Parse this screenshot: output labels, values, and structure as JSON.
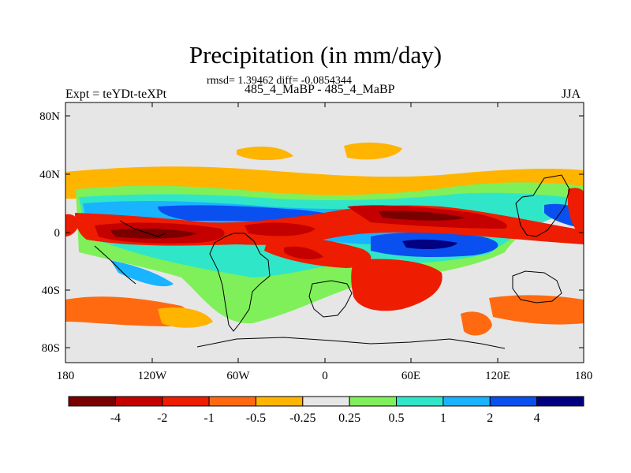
{
  "title": "Precipitation (in mm/day)",
  "stats_line": "rmsd= 1.39462 diff= -0.0854344",
  "subtitle": "485_4_MaBP - 485_4_MaBP",
  "experiment_label": "Expt = teYDt-teXPt",
  "season_label": "JJA",
  "lat_ticks": [
    "80N",
    "40N",
    "0",
    "40S",
    "80S"
  ],
  "lon_ticks": [
    "180",
    "120W",
    "60W",
    "0",
    "60E",
    "120E",
    "180"
  ],
  "colorbar": {
    "colors": [
      "#7a0000",
      "#c40000",
      "#ee1c00",
      "#ff6a10",
      "#ffb400",
      "#e6e6e6",
      "#7ff05a",
      "#30e6c8",
      "#18b4ff",
      "#0a4ff0",
      "#000080"
    ],
    "labels": [
      "-4",
      "-2",
      "-1",
      "-0.5",
      "-0.25",
      "0.25",
      "0.5",
      "1",
      "2",
      "4"
    ]
  },
  "map_background_color": "#e6e6e6"
}
